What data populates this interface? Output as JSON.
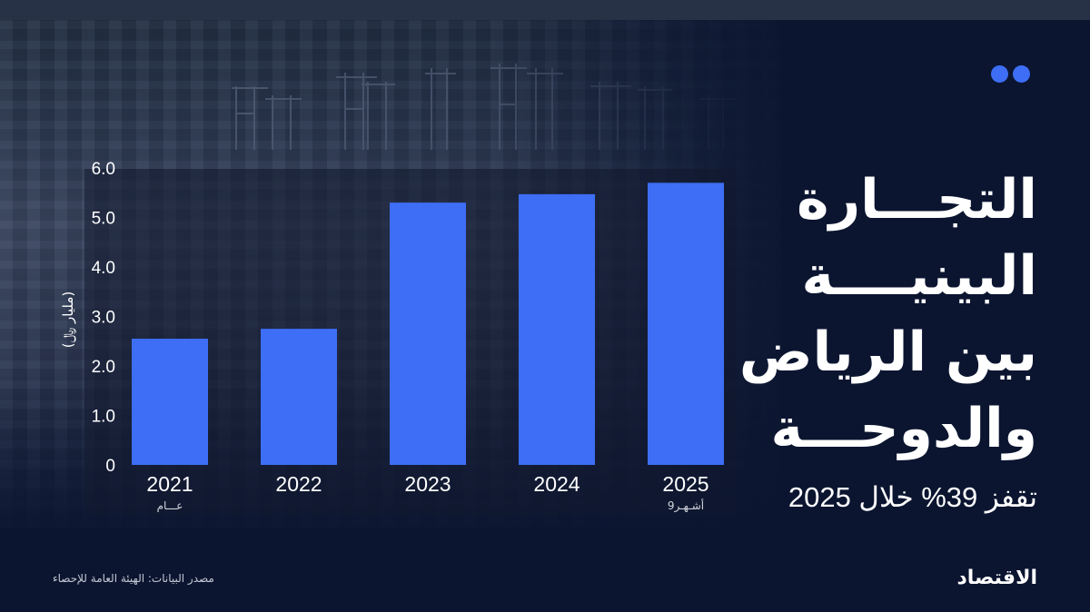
{
  "title_lines": [
    "التجـــارة",
    "البينيــــة",
    "بين الرياض",
    "والدوحـــة"
  ],
  "subtitle": "تقفز 39% خلال 2025",
  "source": "مصدر البيانات: الهيئة العامة للإحصاء",
  "brand": "الاقتصاد",
  "colors": {
    "background": "#0b1530",
    "bar": "#3d6ef5",
    "accent": "#3d6ef5",
    "text": "#ffffff"
  },
  "chart_data": {
    "type": "bar",
    "categories": [
      "2021",
      "2022",
      "2023",
      "2024",
      "2025"
    ],
    "category_sublabels": [
      "عـــام",
      "",
      "",
      "",
      "9أشـهـر"
    ],
    "values": [
      2.55,
      2.75,
      5.3,
      5.47,
      5.7
    ],
    "ylabel": "(مليار ﷼)",
    "yticks": [
      "0",
      "1.0",
      "2.0",
      "3.0",
      "4.0",
      "5.0",
      "6.0"
    ],
    "ylim": [
      0,
      6
    ],
    "grid": false,
    "legend": "none"
  }
}
